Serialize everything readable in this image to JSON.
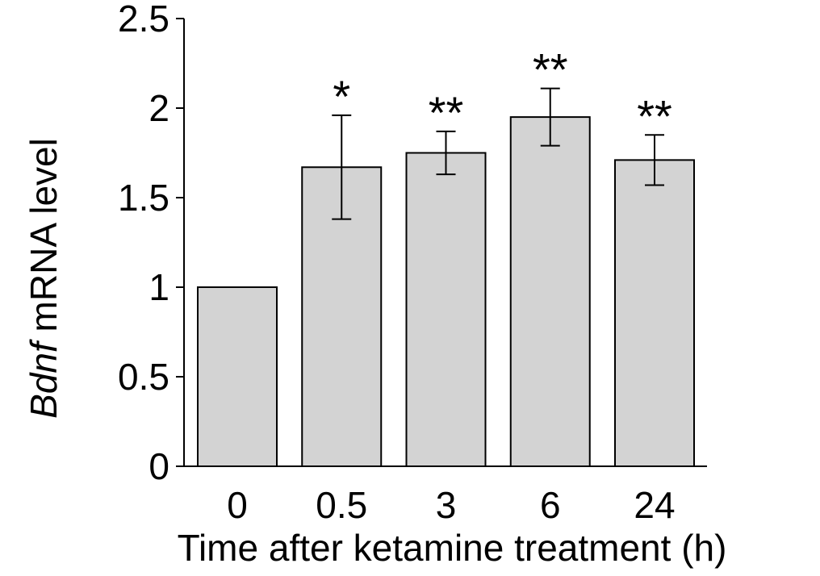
{
  "chart_data": {
    "type": "bar",
    "categories": [
      "0",
      "0.5",
      "3",
      "6",
      "24"
    ],
    "values": [
      1.0,
      1.67,
      1.75,
      1.95,
      1.71
    ],
    "errors": [
      0,
      0.29,
      0.12,
      0.16,
      0.14
    ],
    "significance": [
      "",
      "*",
      "**",
      "**",
      "**"
    ],
    "xlabel": "Time after ketamine treatment (h)",
    "ylabel_italic": "Bdnf",
    "ylabel_rest": " mRNA level",
    "ylim": [
      0,
      2.5
    ],
    "yticks": [
      0,
      0.5,
      1,
      1.5,
      2,
      2.5
    ],
    "ytick_labels": [
      "0",
      "0.5",
      "1",
      "1.5",
      "2",
      "2.5"
    ],
    "bar_color": "#d3d3d3",
    "edge_color": "#000000"
  }
}
